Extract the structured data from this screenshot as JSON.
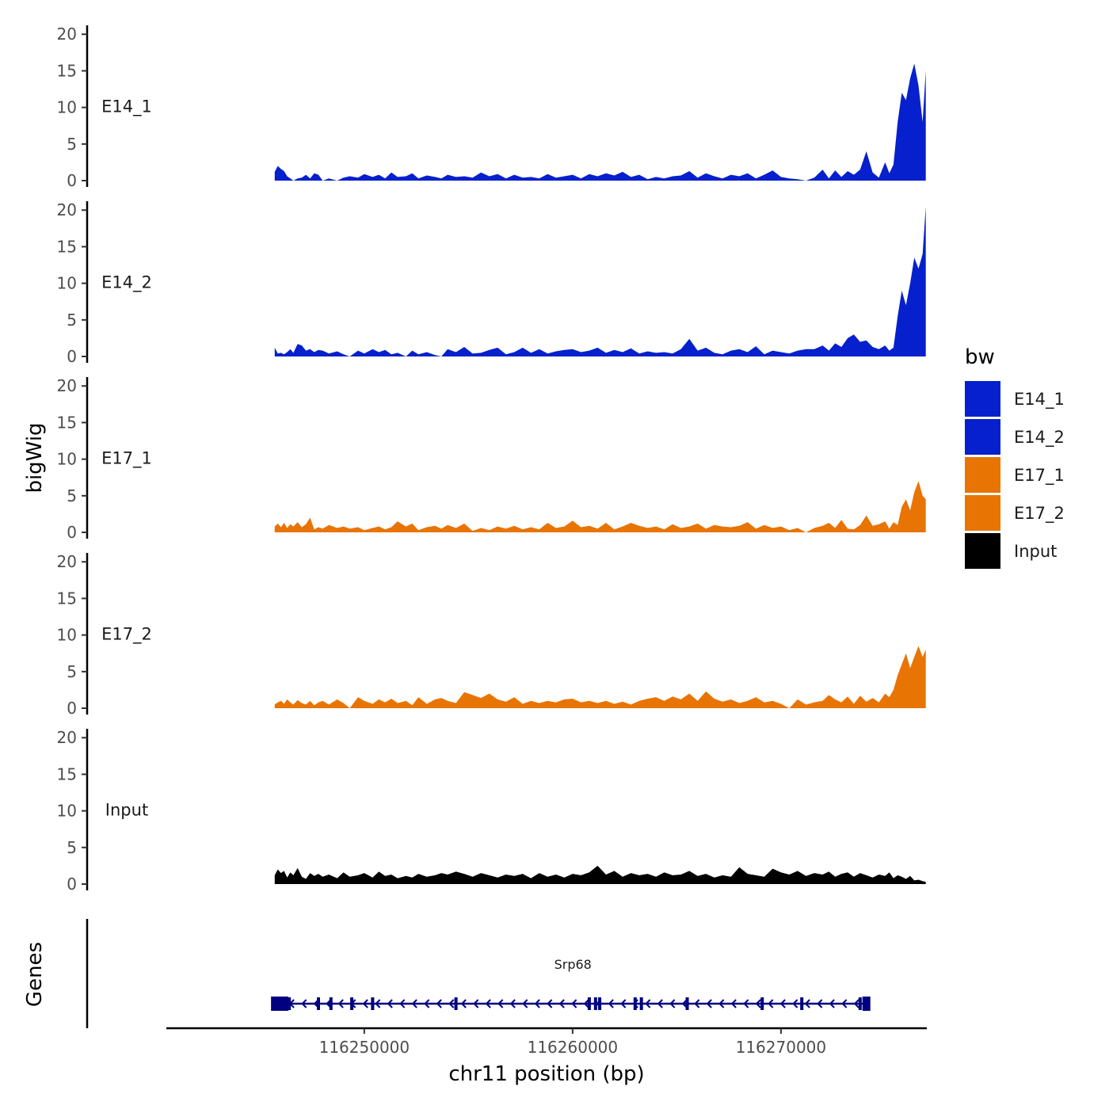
{
  "chart_data": {
    "type": "area",
    "panels": [
      "E14_1",
      "E14_2",
      "E17_1",
      "E17_2",
      "Input"
    ],
    "ylabel": "bigWig",
    "genes_label": "Genes",
    "xlabel": "chr11 position (bp)",
    "y_ticks": [
      0,
      5,
      10,
      15,
      20
    ],
    "ylim": [
      0,
      21
    ],
    "xlim": [
      116240500,
      116277000
    ],
    "x_ticks": [
      116250000,
      116260000,
      116270000
    ],
    "x_tick_labels": [
      "116250000",
      "116260000",
      "116270000"
    ],
    "legend": {
      "title": "bw",
      "placement": "right",
      "items": [
        {
          "label": "E14_1",
          "color": "#0520CC"
        },
        {
          "label": "E14_2",
          "color": "#0520CC"
        },
        {
          "label": "E17_1",
          "color": "#E87404"
        },
        {
          "label": "E17_2",
          "color": "#E87404"
        },
        {
          "label": "Input",
          "color": "#000000"
        }
      ]
    },
    "series": [
      {
        "name": "E14_1",
        "color": "#0520CC",
        "x": [
          116245700,
          116245850,
          116246000,
          116246150,
          116246300,
          116246450,
          116246600,
          116246800,
          116247000,
          116247200,
          116247400,
          116247600,
          116247800,
          116248000,
          116248300,
          116248700,
          116249000,
          116249300,
          116249700,
          116250000,
          116250400,
          116250700,
          116251000,
          116251300,
          116251600,
          116252000,
          116252300,
          116252600,
          116253000,
          116253400,
          116253700,
          116254000,
          116254400,
          116254800,
          116255200,
          116255600,
          116256000,
          116256400,
          116256800,
          116257200,
          116257600,
          116258000,
          116258400,
          116258800,
          116259200,
          116259600,
          116260000,
          116260400,
          116260800,
          116261200,
          116261600,
          116262000,
          116262400,
          116262800,
          116263200,
          116263600,
          116264000,
          116264400,
          116264800,
          116265200,
          116265600,
          116266000,
          116266400,
          116266800,
          116267200,
          116267600,
          116268000,
          116268400,
          116268800,
          116269200,
          116269600,
          116270000,
          116270400,
          116270800,
          116271200,
          116271600,
          116272000,
          116272300,
          116272600,
          116272900,
          116273200,
          116273500,
          116273800,
          116274100,
          116274400,
          116274700,
          116275000,
          116275200,
          116275400,
          116275600,
          116275800,
          116276000,
          116276200,
          116276400,
          116276600,
          116276800,
          116276950
        ],
        "values": [
          1.2,
          2.0,
          1.6,
          1.3,
          0.6,
          0.3,
          0.0,
          0.3,
          0.4,
          0.8,
          0.3,
          1.0,
          0.8,
          0.0,
          0.3,
          0.0,
          0.4,
          0.6,
          0.4,
          0.9,
          0.5,
          0.8,
          0.3,
          1.1,
          0.5,
          0.6,
          1.0,
          0.3,
          0.7,
          0.5,
          0.3,
          0.8,
          0.5,
          0.6,
          0.4,
          1.1,
          0.6,
          0.9,
          0.3,
          0.8,
          0.4,
          0.5,
          0.3,
          0.9,
          0.4,
          0.6,
          0.8,
          0.3,
          0.9,
          0.6,
          1.0,
          0.7,
          1.2,
          0.5,
          0.8,
          0.2,
          0.5,
          0.3,
          0.6,
          0.7,
          1.3,
          0.4,
          1.0,
          0.6,
          0.3,
          0.8,
          0.6,
          1.0,
          0.3,
          0.8,
          1.4,
          0.5,
          0.3,
          0.2,
          0.0,
          0.4,
          1.5,
          0.3,
          1.4,
          0.5,
          1.3,
          0.8,
          1.5,
          4.0,
          1.1,
          0.4,
          2.5,
          1.0,
          2.2,
          8.0,
          12.0,
          11.0,
          14.0,
          16.0,
          13.0,
          8.0,
          15.0
        ]
      },
      {
        "name": "E14_2",
        "color": "#0520CC",
        "x": [
          116245700,
          116245850,
          116246000,
          116246150,
          116246300,
          116246450,
          116246600,
          116246800,
          116247000,
          116247200,
          116247400,
          116247600,
          116247800,
          116248000,
          116248300,
          116248700,
          116249000,
          116249300,
          116249700,
          116250000,
          116250400,
          116250700,
          116251000,
          116251300,
          116251600,
          116252000,
          116252300,
          116252600,
          116253000,
          116253400,
          116253700,
          116254000,
          116254400,
          116254800,
          116255200,
          116255600,
          116256000,
          116256400,
          116256800,
          116257200,
          116257600,
          116258000,
          116258400,
          116258800,
          116259200,
          116259600,
          116260000,
          116260400,
          116260800,
          116261200,
          116261600,
          116262000,
          116262400,
          116262800,
          116263200,
          116263600,
          116264000,
          116264400,
          116264800,
          116265200,
          116265600,
          116266000,
          116266400,
          116266800,
          116267200,
          116267600,
          116268000,
          116268400,
          116268800,
          116269200,
          116269600,
          116270000,
          116270400,
          116270800,
          116271200,
          116271600,
          116272000,
          116272300,
          116272600,
          116272900,
          116273200,
          116273500,
          116273800,
          116274100,
          116274400,
          116274700,
          116275000,
          116275200,
          116275400,
          116275600,
          116275800,
          116276000,
          116276200,
          116276400,
          116276600,
          116276800,
          116276950
        ],
        "values": [
          1.2,
          0.4,
          0.5,
          0.3,
          0.6,
          1.0,
          0.5,
          1.7,
          1.5,
          0.8,
          1.0,
          0.6,
          0.9,
          0.8,
          0.4,
          0.7,
          0.3,
          0.0,
          0.8,
          0.4,
          1.0,
          0.6,
          0.9,
          0.3,
          0.5,
          0.0,
          0.8,
          0.3,
          0.6,
          0.2,
          0.0,
          1.0,
          0.6,
          1.3,
          0.4,
          0.5,
          0.9,
          1.2,
          0.3,
          0.6,
          1.2,
          0.5,
          1.0,
          0.4,
          0.7,
          0.9,
          1.0,
          0.6,
          0.8,
          1.2,
          0.5,
          0.9,
          0.6,
          1.1,
          0.4,
          0.7,
          0.5,
          0.6,
          0.4,
          1.0,
          2.4,
          0.8,
          1.2,
          0.5,
          0.3,
          0.8,
          1.0,
          0.6,
          1.4,
          0.3,
          0.8,
          0.6,
          0.4,
          0.8,
          1.0,
          1.0,
          1.5,
          0.8,
          1.8,
          1.3,
          2.5,
          3.0,
          2.0,
          2.2,
          1.3,
          1.0,
          1.5,
          0.8,
          1.2,
          5.5,
          9.0,
          7.0,
          10.0,
          13.5,
          12.0,
          14.0,
          20.5
        ]
      },
      {
        "name": "E17_1",
        "color": "#E87404",
        "x": [
          116245700,
          116245850,
          116246000,
          116246150,
          116246300,
          116246450,
          116246600,
          116246800,
          116247000,
          116247200,
          116247400,
          116247600,
          116247800,
          116248000,
          116248300,
          116248700,
          116249000,
          116249300,
          116249700,
          116250000,
          116250400,
          116250700,
          116251000,
          116251300,
          116251600,
          116252000,
          116252300,
          116252600,
          116253000,
          116253400,
          116253700,
          116254000,
          116254400,
          116254800,
          116255200,
          116255600,
          116256000,
          116256400,
          116256800,
          116257200,
          116257600,
          116258000,
          116258400,
          116258800,
          116259200,
          116259600,
          116260000,
          116260400,
          116260800,
          116261200,
          116261600,
          116262000,
          116262400,
          116262800,
          116263200,
          116263600,
          116264000,
          116264400,
          116264800,
          116265200,
          116265600,
          116266000,
          116266400,
          116266800,
          116267200,
          116267600,
          116268000,
          116268400,
          116268800,
          116269200,
          116269600,
          116270000,
          116270400,
          116270800,
          116271200,
          116271600,
          116272000,
          116272300,
          116272600,
          116272900,
          116273200,
          116273500,
          116273800,
          116274100,
          116274400,
          116274700,
          116275000,
          116275200,
          116275400,
          116275600,
          116275800,
          116276000,
          116276200,
          116276400,
          116276600,
          116276800,
          116276950
        ],
        "values": [
          0.8,
          1.2,
          0.7,
          1.3,
          0.6,
          1.1,
          0.8,
          1.4,
          0.7,
          1.1,
          2.0,
          0.4,
          0.7,
          0.5,
          1.0,
          0.6,
          0.8,
          0.5,
          0.7,
          0.3,
          0.6,
          0.8,
          0.4,
          0.7,
          1.5,
          0.8,
          1.2,
          0.3,
          0.7,
          0.9,
          0.5,
          1.0,
          0.6,
          1.2,
          0.2,
          0.6,
          0.3,
          0.8,
          0.5,
          0.9,
          0.4,
          0.7,
          0.4,
          1.3,
          0.6,
          0.8,
          1.6,
          0.7,
          0.9,
          0.5,
          1.3,
          0.4,
          0.8,
          1.3,
          0.9,
          0.6,
          0.8,
          0.4,
          1.1,
          0.6,
          0.8,
          1.2,
          0.5,
          1.0,
          0.8,
          0.7,
          0.9,
          1.4,
          0.5,
          1.0,
          0.6,
          0.8,
          0.3,
          0.6,
          0.0,
          0.6,
          0.9,
          1.3,
          0.6,
          1.7,
          0.5,
          0.4,
          1.0,
          2.3,
          0.9,
          1.1,
          1.5,
          0.5,
          1.4,
          1.0,
          3.5,
          4.5,
          3.0,
          5.5,
          7.0,
          5.0,
          4.5
        ]
      },
      {
        "name": "E17_2",
        "color": "#E87404",
        "x": [
          116245700,
          116245850,
          116246000,
          116246150,
          116246300,
          116246450,
          116246600,
          116246800,
          116247000,
          116247200,
          116247400,
          116247600,
          116247800,
          116248000,
          116248300,
          116248700,
          116249000,
          116249300,
          116249700,
          116250000,
          116250400,
          116250700,
          116251000,
          116251300,
          116251600,
          116252000,
          116252300,
          116252600,
          116253000,
          116253400,
          116253700,
          116254000,
          116254400,
          116254800,
          116255200,
          116255600,
          116256000,
          116256400,
          116256800,
          116257200,
          116257600,
          116258000,
          116258400,
          116258800,
          116259200,
          116259600,
          116260000,
          116260400,
          116260800,
          116261200,
          116261600,
          116262000,
          116262400,
          116262800,
          116263200,
          116263600,
          116264000,
          116264400,
          116264800,
          116265200,
          116265600,
          116266000,
          116266400,
          116266800,
          116267200,
          116267600,
          116268000,
          116268400,
          116268800,
          116269200,
          116269600,
          116270000,
          116270400,
          116270800,
          116271200,
          116271600,
          116272000,
          116272300,
          116272600,
          116272900,
          116273200,
          116273500,
          116273800,
          116274100,
          116274400,
          116274700,
          116275000,
          116275200,
          116275400,
          116275600,
          116275800,
          116276000,
          116276200,
          116276400,
          116276600,
          116276800,
          116276950
        ],
        "values": [
          0.5,
          0.8,
          1.0,
          0.6,
          1.2,
          0.8,
          0.5,
          1.1,
          0.7,
          0.5,
          1.0,
          0.4,
          0.8,
          1.0,
          0.5,
          1.2,
          0.7,
          0.0,
          1.5,
          1.0,
          0.6,
          1.2,
          0.8,
          1.3,
          0.7,
          1.0,
          0.4,
          1.5,
          0.6,
          1.2,
          1.4,
          1.0,
          0.7,
          2.2,
          1.8,
          1.4,
          2.0,
          1.2,
          0.9,
          1.5,
          0.6,
          1.0,
          0.7,
          1.0,
          0.8,
          1.2,
          1.3,
          0.8,
          1.0,
          0.7,
          1.0,
          0.6,
          0.9,
          0.5,
          1.0,
          1.3,
          1.5,
          1.0,
          1.6,
          1.2,
          2.0,
          1.0,
          2.3,
          1.3,
          0.9,
          1.2,
          0.7,
          1.0,
          1.5,
          0.8,
          1.0,
          0.6,
          0.0,
          1.2,
          0.5,
          0.8,
          1.0,
          1.8,
          1.2,
          0.8,
          1.6,
          0.6,
          1.7,
          0.9,
          1.4,
          0.8,
          2.0,
          1.5,
          2.5,
          4.5,
          6.0,
          7.5,
          5.5,
          7.0,
          8.5,
          7.0,
          8.0
        ]
      },
      {
        "name": "Input",
        "color": "#000000",
        "x": [
          116245700,
          116245850,
          116246000,
          116246150,
          116246300,
          116246450,
          116246600,
          116246800,
          116247000,
          116247200,
          116247400,
          116247600,
          116247800,
          116248000,
          116248300,
          116248700,
          116249000,
          116249300,
          116249700,
          116250000,
          116250400,
          116250700,
          116251000,
          116251300,
          116251600,
          116252000,
          116252300,
          116252600,
          116253000,
          116253400,
          116253700,
          116254000,
          116254400,
          116254800,
          116255200,
          116255600,
          116256000,
          116256400,
          116256800,
          116257200,
          116257600,
          116258000,
          116258400,
          116258800,
          116259200,
          116259600,
          116260000,
          116260400,
          116260800,
          116261200,
          116261600,
          116262000,
          116262400,
          116262800,
          116263200,
          116263600,
          116264000,
          116264400,
          116264800,
          116265200,
          116265600,
          116266000,
          116266400,
          116266800,
          116267200,
          116267600,
          116268000,
          116268400,
          116268800,
          116269200,
          116269600,
          116270000,
          116270400,
          116270800,
          116271200,
          116271600,
          116272000,
          116272300,
          116272600,
          116272900,
          116273200,
          116273500,
          116273800,
          116274100,
          116274400,
          116274700,
          116275000,
          116275200,
          116275400,
          116275600,
          116275800,
          116276000,
          116276200,
          116276400,
          116276600,
          116276800,
          116276950
        ],
        "values": [
          1.2,
          2.0,
          1.5,
          1.8,
          0.9,
          1.6,
          1.2,
          2.2,
          1.0,
          0.7,
          1.5,
          1.1,
          1.4,
          1.0,
          1.3,
          0.8,
          1.6,
          1.0,
          1.2,
          1.5,
          0.9,
          1.7,
          1.1,
          1.3,
          0.8,
          1.1,
          0.9,
          1.4,
          1.0,
          1.2,
          1.5,
          1.3,
          1.7,
          1.4,
          1.0,
          1.5,
          1.2,
          0.9,
          1.3,
          1.1,
          1.4,
          0.8,
          1.5,
          1.0,
          1.3,
          0.9,
          1.4,
          1.2,
          1.6,
          2.5,
          1.3,
          1.8,
          1.0,
          1.5,
          1.2,
          1.4,
          1.0,
          1.6,
          1.2,
          1.3,
          1.8,
          1.1,
          1.4,
          0.9,
          1.2,
          1.0,
          2.3,
          1.4,
          1.2,
          1.0,
          2.1,
          1.6,
          1.3,
          1.8,
          1.1,
          1.5,
          1.3,
          1.7,
          1.0,
          1.4,
          1.6,
          1.0,
          1.5,
          1.2,
          0.9,
          1.3,
          1.1,
          1.6,
          0.8,
          1.2,
          1.0,
          0.7,
          1.1,
          0.5,
          0.6,
          0.4,
          0.3
        ]
      }
    ],
    "genes": [
      {
        "name": "Srp68",
        "start": 116245600,
        "end": 116274200,
        "strand": "-",
        "exons": [
          116245600,
          116245800,
          116246400,
          116247800,
          116248400,
          116249400,
          116250400,
          116254400,
          116260800,
          116261100,
          116261300,
          116263000,
          116263300,
          116265500,
          116269100,
          116271000,
          116273800,
          116274100
        ]
      }
    ]
  }
}
